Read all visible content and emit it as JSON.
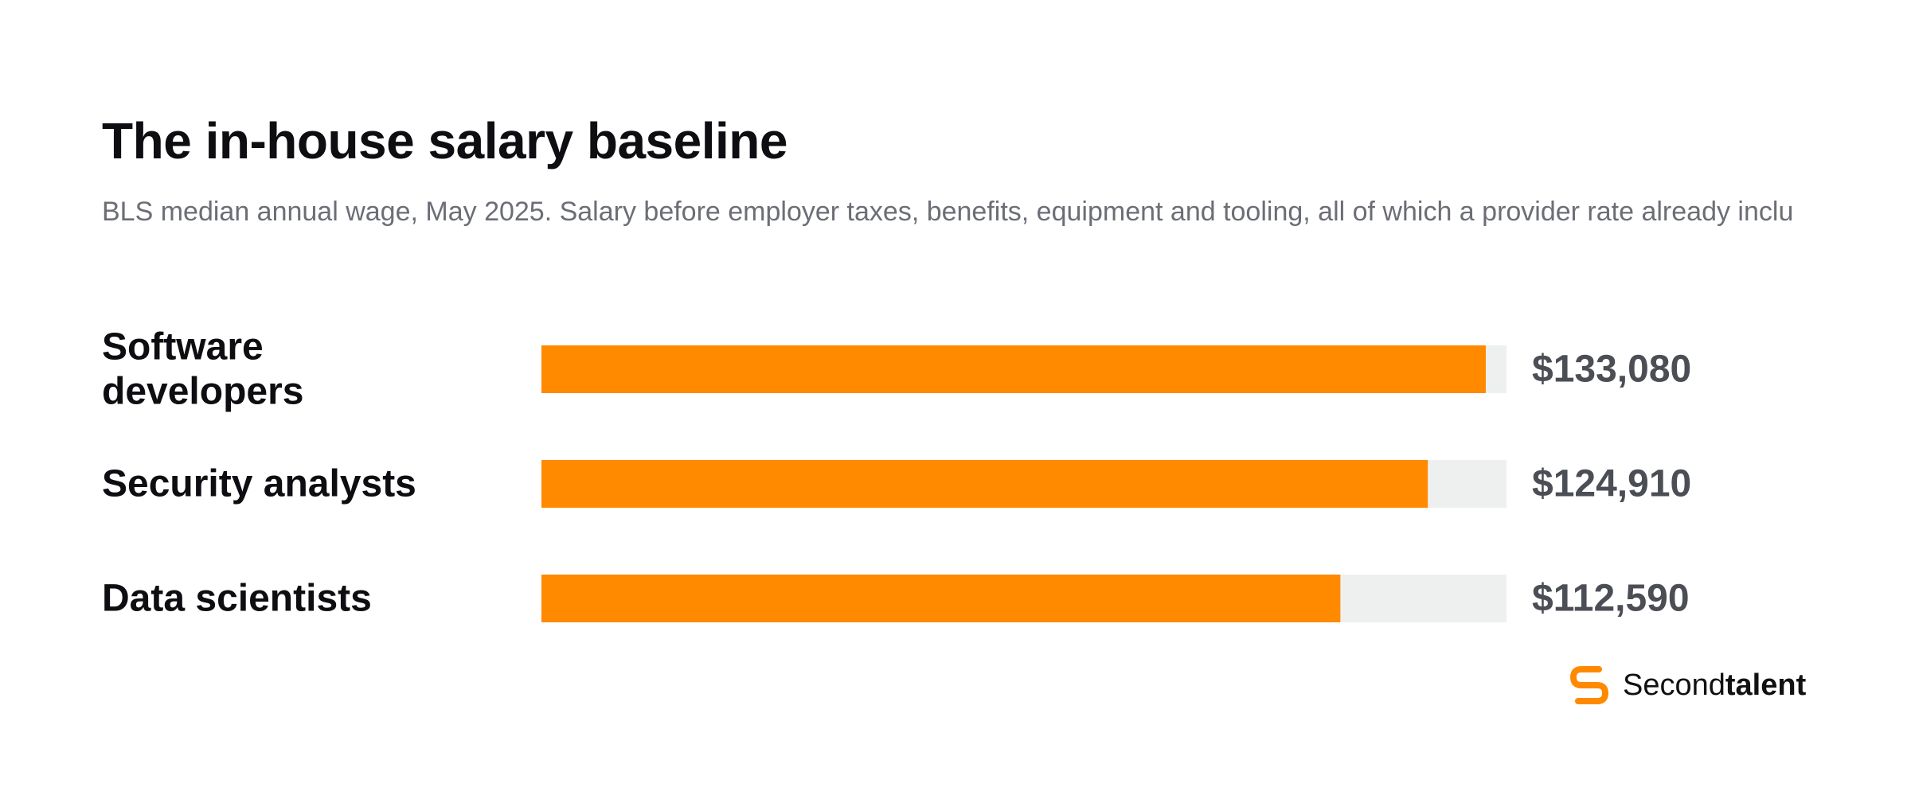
{
  "title": "The in-house salary baseline",
  "subtitle": "BLS median annual wage, May 2025. Salary before employer taxes, benefits, equipment and tooling, all of which a provider rate already inclu",
  "brand": {
    "name_regular": "Second",
    "name_bold": "talent",
    "icon": "secondtalent-logo-icon",
    "color": "#FF8A00"
  },
  "chart_data": {
    "type": "bar",
    "orientation": "horizontal",
    "categories": [
      "Software developers",
      "Security analysts",
      "Data scientists"
    ],
    "category_lines": [
      [
        "Software",
        "developers"
      ],
      [
        "Security analysts"
      ],
      [
        "Data scientists"
      ]
    ],
    "values": [
      133080,
      124910,
      112590
    ],
    "value_labels": [
      "$133,080",
      "$124,910",
      "$112,590"
    ],
    "xlim": [
      0,
      136000
    ],
    "bar_color": "#FF8A00",
    "track_color": "#EEF0EF",
    "grid": false,
    "legend": "none",
    "xlabel": "",
    "ylabel": ""
  }
}
